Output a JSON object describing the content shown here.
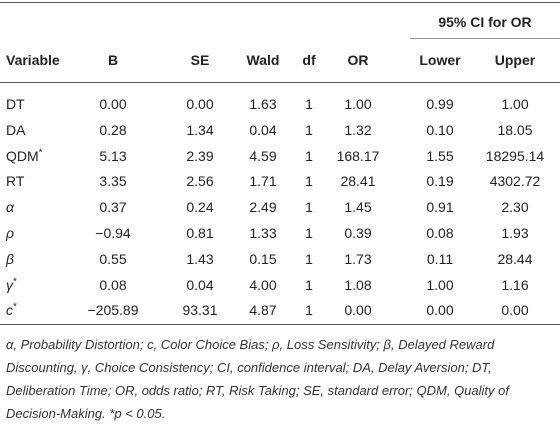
{
  "table": {
    "group_header": "95% CI for OR",
    "columns": [
      "Variable",
      "B",
      "SE",
      "Wald",
      "df",
      "OR",
      "Lower",
      "Upper"
    ],
    "rows": [
      {
        "variable": "DT",
        "cells": [
          "0.00",
          "0.00",
          "1.63",
          "1",
          "1.00",
          "0.99",
          "1.00"
        ]
      },
      {
        "variable": "DA",
        "cells": [
          "0.28",
          "1.34",
          "0.04",
          "1",
          "1.32",
          "0.10",
          "18.05"
        ]
      },
      {
        "variable": "QDM",
        "sup": "*",
        "cells": [
          "5.13",
          "2.39",
          "4.59",
          "1",
          "168.17",
          "1.55",
          "18295.14"
        ]
      },
      {
        "variable": "RT",
        "cells": [
          "3.35",
          "2.56",
          "1.71",
          "1",
          "28.41",
          "0.19",
          "4302.72"
        ]
      },
      {
        "variable": "α",
        "cells": [
          "0.37",
          "0.24",
          "2.49",
          "1",
          "1.45",
          "0.91",
          "2.30"
        ]
      },
      {
        "variable": "ρ",
        "cells": [
          "−0.94",
          "0.81",
          "1.33",
          "1",
          "0.39",
          "0.08",
          "1.93"
        ]
      },
      {
        "variable": "β",
        "cells": [
          "0.55",
          "1.43",
          "0.15",
          "1",
          "1.73",
          "0.11",
          "28.44"
        ]
      },
      {
        "variable": "γ",
        "sup": "*",
        "cells": [
          "0.08",
          "0.04",
          "4.00",
          "1",
          "1.08",
          "1.00",
          "1.16"
        ]
      },
      {
        "variable": "c",
        "sup": "*",
        "cells": [
          "−205.89",
          "93.31",
          "4.87",
          "1",
          "0.00",
          "0.00",
          "0.00"
        ]
      }
    ],
    "footnote": "α, Probability Distortion; c, Color Choice Bias; ρ, Loss Sensitivity; β, Delayed Reward Discounting, γ, Choice Consistency; CI, confidence interval; DA, Delay Aversion; DT, Deliberation Time; OR, odds ratio; RT, Risk Taking; SE, standard error; QDM, Quality of Decision-Making. *p < 0.05."
  }
}
